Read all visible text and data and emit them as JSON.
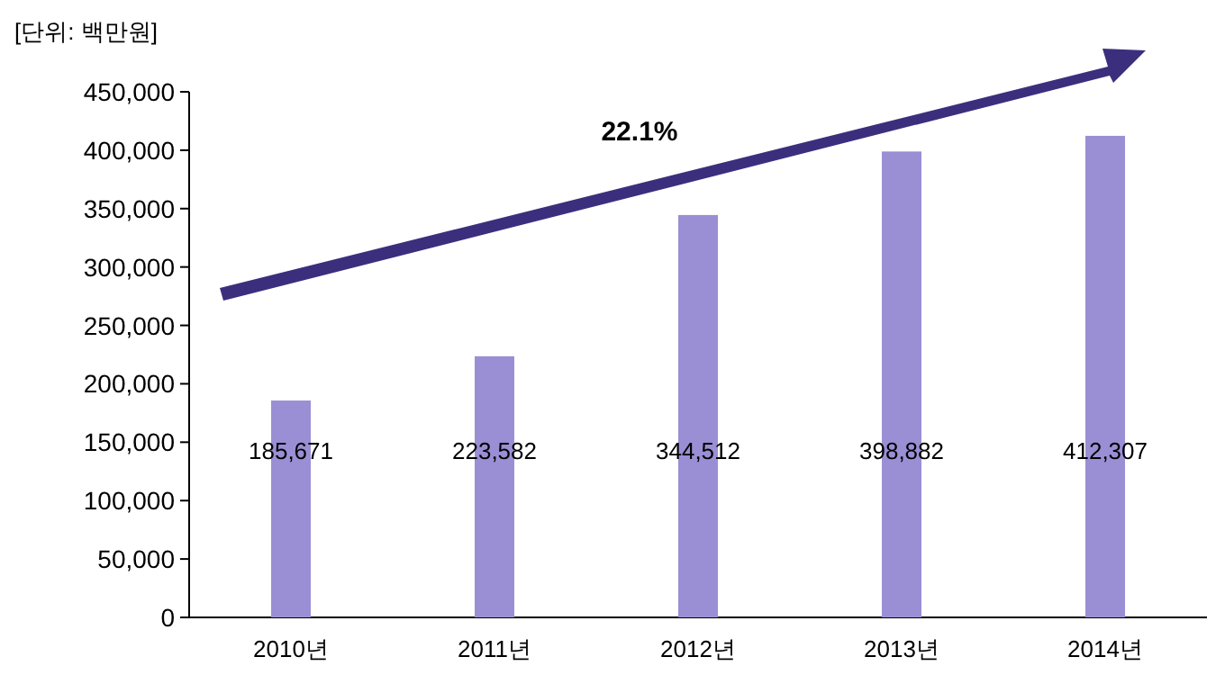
{
  "chart_data": {
    "type": "bar",
    "ylabel": "[단위: 백만원]",
    "categories": [
      "2010년",
      "2011년",
      "2012년",
      "2013년",
      "2014년"
    ],
    "values": [
      185671,
      223582,
      344512,
      398882,
      412307
    ],
    "value_labels": [
      "185,671",
      "223,582",
      "344,512",
      "398,882",
      "412,307"
    ],
    "color": "#9a8fd4",
    "ylim": [
      0,
      450000
    ],
    "yticks": [
      {
        "value": 0,
        "label": "0"
      },
      {
        "value": 50000,
        "label": "50,000"
      },
      {
        "value": 100000,
        "label": "100,000"
      },
      {
        "value": 150000,
        "label": "150,000"
      },
      {
        "value": 200000,
        "label": "200,000"
      },
      {
        "value": 250000,
        "label": "250,000"
      },
      {
        "value": 300000,
        "label": "300,000"
      },
      {
        "value": 350000,
        "label": "350,000"
      },
      {
        "value": 400000,
        "label": "400,000"
      },
      {
        "value": 450000,
        "label": "450,000"
      }
    ],
    "grid": false,
    "annotations": [
      "22.1%"
    ]
  }
}
